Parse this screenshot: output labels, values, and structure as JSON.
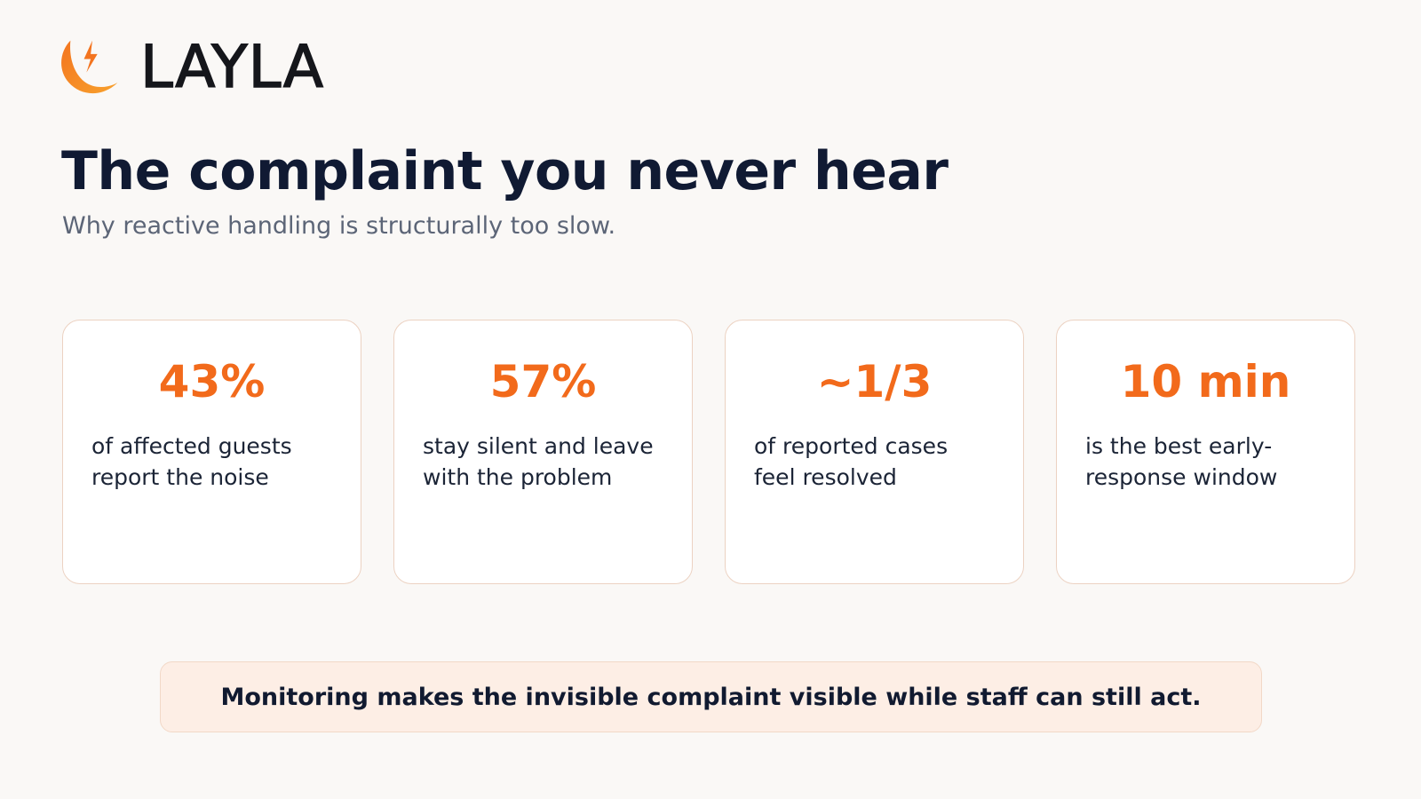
{
  "brand": {
    "name": "LAYLA",
    "logo_icon": "crescent-lightning-icon",
    "accent_color": "#f26a1b"
  },
  "slide": {
    "title": "The complaint you never hear",
    "subtitle": "Why reactive handling is structurally too slow."
  },
  "stats": [
    {
      "value": "43%",
      "description": "of affected guests report the noise"
    },
    {
      "value": "57%",
      "description": "stay silent and leave with the problem"
    },
    {
      "value": "~1/3",
      "description": "of reported cases feel resolved"
    },
    {
      "value": "10 min",
      "description": "is the best early-response window"
    }
  ],
  "callout": {
    "text": "Monitoring makes the invisible complaint visible while staff can still act."
  }
}
